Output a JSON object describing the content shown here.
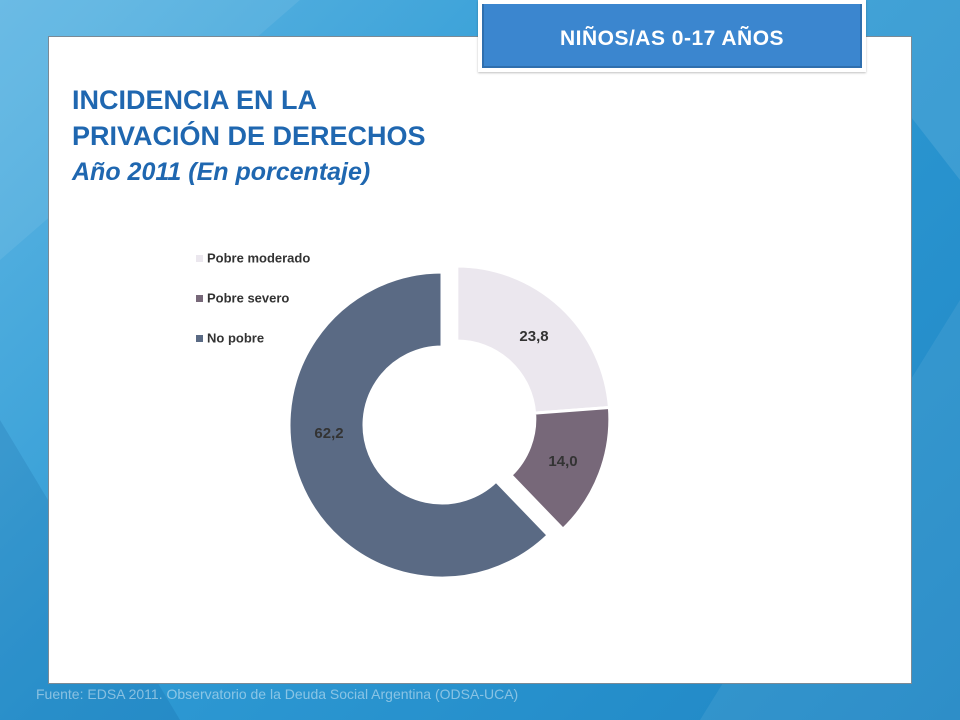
{
  "header": {
    "tab_label": "NIÑOS/AS 0-17 AÑOS"
  },
  "slide": {
    "title_line1": "INCIDENCIA EN LA",
    "title_line2": "PRIVACIÓN DE DERECHOS",
    "subtitle": "Año 2011 (En porcentaje)",
    "source": "Fuente: EDSA 2011. Observatorio de la Deuda Social Argentina (ODSA-UCA)"
  },
  "colors": {
    "background_blue": "#2e9ad4",
    "title_blue": "#1f67b0",
    "tab_blue": "#3b86cf",
    "pobre_moderado": "#ebe7ee",
    "pobre_severo": "#776879",
    "no_pobre": "#5a6a84"
  },
  "chart_data": {
    "type": "pie",
    "variant": "donut",
    "categories": [
      "Pobre moderado",
      "Pobre severo",
      "No pobre"
    ],
    "values": [
      23.8,
      14.0,
      62.2
    ],
    "labels": [
      "23,8",
      "14,0",
      "62,2"
    ],
    "exploded": [
      "Pobre moderado",
      "Pobre severo"
    ],
    "legend_position": "top-left"
  }
}
